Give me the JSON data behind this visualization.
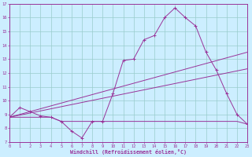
{
  "xlabel": "Windchill (Refroidissement éolien,°C)",
  "xlim": [
    0,
    23
  ],
  "ylim": [
    7,
    17
  ],
  "bg_color": "#cceeff",
  "line_color": "#993399",
  "grid_color": "#99cccc",
  "line1_x": [
    0,
    1,
    2,
    3,
    4,
    5,
    6,
    7,
    8,
    9,
    10,
    11,
    12,
    13,
    14,
    15,
    16,
    17,
    18,
    19,
    20,
    21,
    22,
    23
  ],
  "line1_y": [
    8.8,
    9.5,
    9.2,
    8.9,
    8.8,
    8.5,
    7.8,
    7.3,
    8.5,
    8.5,
    10.5,
    12.9,
    13.0,
    14.4,
    14.7,
    16.0,
    16.7,
    16.0,
    15.4,
    13.5,
    12.2,
    10.5,
    9.0,
    8.3
  ],
  "line2_x": [
    0,
    23
  ],
  "line2_y": [
    8.8,
    13.5
  ],
  "line3_x": [
    0,
    23
  ],
  "line3_y": [
    8.8,
    12.3
  ],
  "line4_x": [
    0,
    4,
    5,
    6,
    7,
    8,
    9,
    10,
    11,
    12,
    13,
    14,
    15,
    16,
    17,
    18,
    19,
    20,
    21,
    22,
    23
  ],
  "line4_y": [
    8.8,
    8.8,
    8.5,
    8.5,
    8.5,
    8.5,
    8.5,
    8.5,
    8.5,
    8.5,
    8.5,
    8.5,
    8.5,
    8.5,
    8.5,
    8.5,
    8.5,
    8.5,
    8.5,
    8.5,
    8.3
  ],
  "xtick_labels": [
    "0",
    "1",
    "2",
    "3",
    "4",
    "5",
    "6",
    "7",
    "8",
    "9",
    "10",
    "11",
    "12",
    "13",
    "14",
    "15",
    "16",
    "17",
    "18",
    "19",
    "20",
    "21",
    "22",
    "23"
  ],
  "ytick_labels": [
    "7",
    "8",
    "9",
    "10",
    "11",
    "12",
    "13",
    "14",
    "15",
    "16",
    "17"
  ]
}
